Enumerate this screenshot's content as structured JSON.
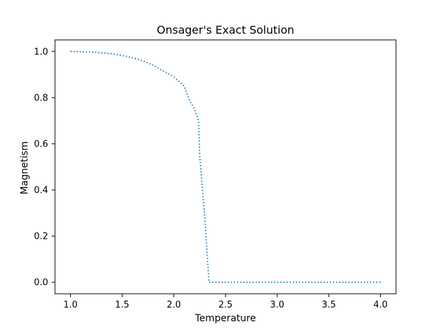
{
  "chart_data": {
    "type": "line",
    "title": "Onsager's Exact Solution",
    "xlabel": "Temperature",
    "ylabel": "Magnetism",
    "xlim": [
      0.85,
      4.15
    ],
    "ylim": [
      -0.05,
      1.05
    ],
    "xticks": [
      1.0,
      1.5,
      2.0,
      2.5,
      3.0,
      3.5,
      4.0
    ],
    "xtick_labels": [
      "1.0",
      "1.5",
      "2.0",
      "2.5",
      "3.0",
      "3.5",
      "4.0"
    ],
    "yticks": [
      0.0,
      0.2,
      0.4,
      0.6,
      0.8,
      1.0
    ],
    "ytick_labels": [
      "0.0",
      "0.2",
      "0.4",
      "0.6",
      "0.8",
      "1.0"
    ],
    "grid": false,
    "line_style": "dotted",
    "color": "#1f77b4",
    "series": [
      {
        "x": [
          1.0,
          1.1,
          1.2,
          1.3,
          1.4,
          1.5,
          1.6,
          1.7,
          1.8,
          1.9,
          2.0,
          2.05,
          2.1,
          2.15,
          2.2,
          2.24,
          2.25,
          2.3,
          2.34,
          2.4,
          2.5,
          3.0,
          3.5,
          4.0
        ],
        "y": [
          1.0,
          0.999,
          0.997,
          0.994,
          0.99,
          0.983,
          0.973,
          0.96,
          0.94,
          0.915,
          0.89,
          0.87,
          0.85,
          0.79,
          0.75,
          0.7,
          0.55,
          0.28,
          0.0,
          0.0,
          0.0,
          0.0,
          0.0,
          0.0
        ]
      }
    ]
  }
}
